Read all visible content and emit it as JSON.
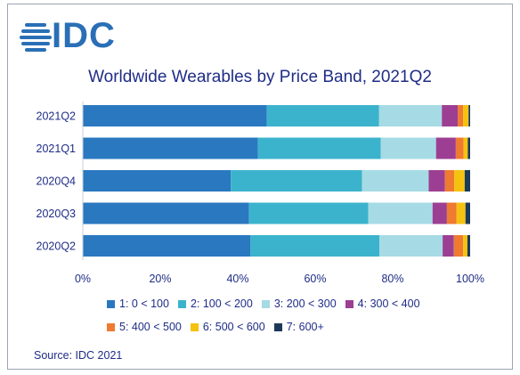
{
  "brand": {
    "logo_text": "IDC",
    "logo_color": "#2a6fb6"
  },
  "source": "Source: IDC 2021",
  "chart_data": {
    "type": "bar",
    "orientation": "horizontal",
    "stacked": true,
    "title": "Worldwide Wearables by Price Band, 2021Q2",
    "categories": [
      "2021Q2",
      "2021Q1",
      "2020Q4",
      "2020Q3",
      "2020Q2"
    ],
    "xlim": [
      0,
      100
    ],
    "x_ticks": [
      "0%",
      "20%",
      "40%",
      "60%",
      "80%",
      "100%"
    ],
    "grid": false,
    "legend_position": "bottom",
    "series": [
      {
        "name": "1: 0 < 100",
        "color": "#2a78c0",
        "values": [
          47.5,
          45.2,
          38.2,
          42.9,
          43.3
        ]
      },
      {
        "name": "2: 100 < 200",
        "color": "#3cb3cc",
        "values": [
          29.0,
          31.7,
          33.9,
          30.8,
          33.3
        ]
      },
      {
        "name": "3: 200 < 300",
        "color": "#a6dbe5",
        "values": [
          16.2,
          14.3,
          17.2,
          16.6,
          16.3
        ]
      },
      {
        "name": "4: 300 < 400",
        "color": "#9c3f93",
        "values": [
          4.1,
          5.1,
          4.2,
          3.7,
          2.9
        ]
      },
      {
        "name": "5: 400 < 500",
        "color": "#ee7b30",
        "values": [
          1.4,
          2.0,
          2.4,
          2.5,
          2.4
        ]
      },
      {
        "name": "6: 500 < 600",
        "color": "#f5c20f",
        "values": [
          1.4,
          1.1,
          2.7,
          2.3,
          1.1
        ]
      },
      {
        "name": "7: 600+",
        "color": "#1b3a5a",
        "values": [
          0.4,
          0.6,
          1.4,
          1.2,
          0.7
        ]
      }
    ]
  }
}
